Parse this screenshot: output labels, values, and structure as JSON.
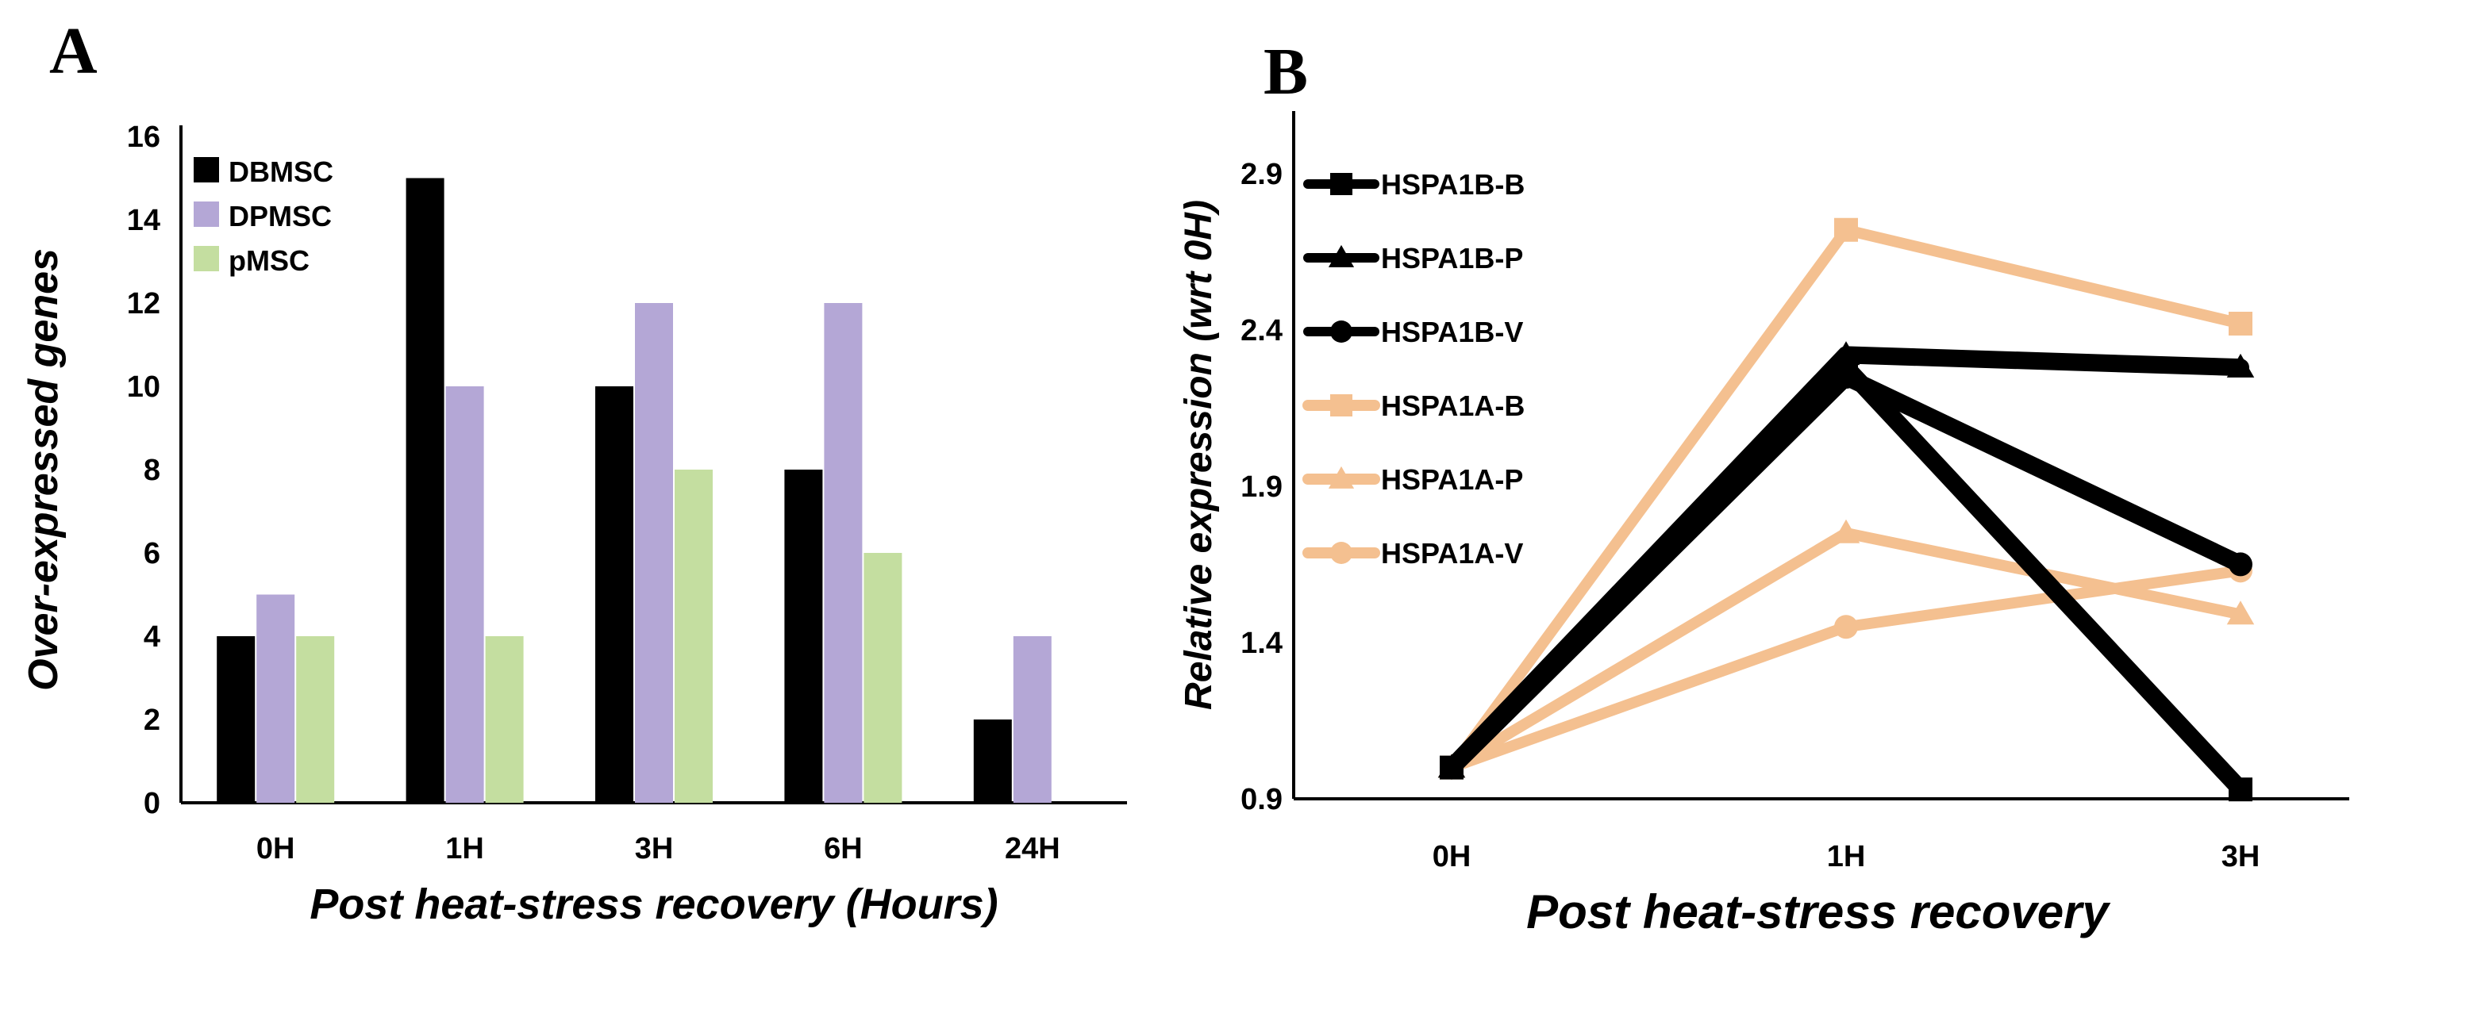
{
  "chart_data": [
    {
      "panel": "A",
      "type": "bar",
      "xlabel": "Post heat-stress recovery (Hours)",
      "ylabel": "Over-expressed genes",
      "categories": [
        "0H",
        "1H",
        "3H",
        "6H",
        "24H"
      ],
      "ylim": [
        0,
        16
      ],
      "yticks": [
        0,
        2,
        4,
        6,
        8,
        10,
        12,
        14,
        16
      ],
      "legend_position": "top-left",
      "series": [
        {
          "name": "DBMSC",
          "color": "#000000",
          "values": [
            4,
            15,
            10,
            8,
            2
          ]
        },
        {
          "name": "DPMSC",
          "color": "#b4a7d6",
          "values": [
            5,
            10,
            12,
            12,
            4
          ]
        },
        {
          "name": "pMSC",
          "color": "#c4dea0",
          "values": [
            4,
            4,
            8,
            6,
            0
          ]
        }
      ]
    },
    {
      "panel": "B",
      "type": "line",
      "xlabel": "Post heat-stress recovery",
      "ylabel": "Relative expression (wrt 0H)",
      "categories": [
        "0H",
        "1H",
        "3H"
      ],
      "ylim": [
        0.9,
        3.1
      ],
      "yticks": [
        "0.9",
        "1.4",
        "1.9",
        "2.4",
        "2.9"
      ],
      "legend_position": "top-left",
      "series": [
        {
          "name": "HSPA1B-B",
          "color": "#000000",
          "marker": "square",
          "values": [
            1.0,
            2.28,
            0.93
          ]
        },
        {
          "name": "HSPA1B-P",
          "color": "#000000",
          "marker": "triangle",
          "values": [
            1.0,
            2.32,
            2.28
          ]
        },
        {
          "name": "HSPA1B-V",
          "color": "#000000",
          "marker": "circle",
          "values": [
            1.0,
            2.25,
            1.65
          ]
        },
        {
          "name": "HSPA1A-B",
          "color": "#f4c090",
          "marker": "square",
          "values": [
            1.0,
            2.72,
            2.42
          ]
        },
        {
          "name": "HSPA1A-P",
          "color": "#f4c090",
          "marker": "triangle",
          "values": [
            1.0,
            1.75,
            1.49
          ]
        },
        {
          "name": "HSPA1A-V",
          "color": "#f4c090",
          "marker": "circle",
          "values": [
            1.0,
            1.45,
            1.63
          ]
        }
      ]
    }
  ]
}
